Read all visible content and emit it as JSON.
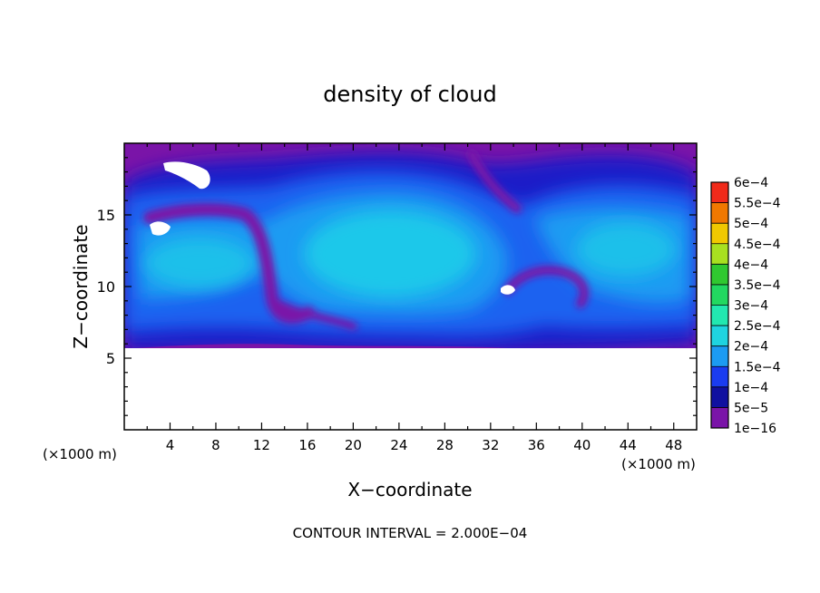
{
  "chart_data": {
    "type": "heatmap",
    "title": "density of cloud",
    "xlabel": "X−coordinate",
    "ylabel": "Z−coordinate",
    "x_unit_left": "(×1000 m)",
    "x_unit_right": "(×1000 m)",
    "xlim": [
      0,
      50
    ],
    "ylim": [
      0,
      20
    ],
    "x_ticks": [
      4,
      8,
      12,
      16,
      20,
      24,
      28,
      32,
      36,
      40,
      44,
      48
    ],
    "y_ticks": [
      5,
      10,
      15
    ],
    "cloud_base_z": 5,
    "footer": "CONTOUR INTERVAL = 2.000E−04",
    "colorbar": {
      "levels": [
        {
          "label": "1e−16",
          "color": "#7a14a8"
        },
        {
          "label": "5e−5",
          "color": "#1010a0"
        },
        {
          "label": "1e−4",
          "color": "#1a3cf0"
        },
        {
          "label": "1.5e−4",
          "color": "#1c9bf2"
        },
        {
          "label": "2e−4",
          "color": "#1fd4e0"
        },
        {
          "label": "2.5e−4",
          "color": "#22e8b0"
        },
        {
          "label": "3e−4",
          "color": "#22d860"
        },
        {
          "label": "3.5e−4",
          "color": "#30c830"
        },
        {
          "label": "4e−4",
          "color": "#a8e020"
        },
        {
          "label": "4.5e−4",
          "color": "#f0c800"
        },
        {
          "label": "5e−4",
          "color": "#f07800"
        },
        {
          "label": "5.5e−4",
          "color": "#f02a1a"
        },
        {
          "label": "6e−4",
          "color": "#f49090"
        }
      ]
    }
  }
}
